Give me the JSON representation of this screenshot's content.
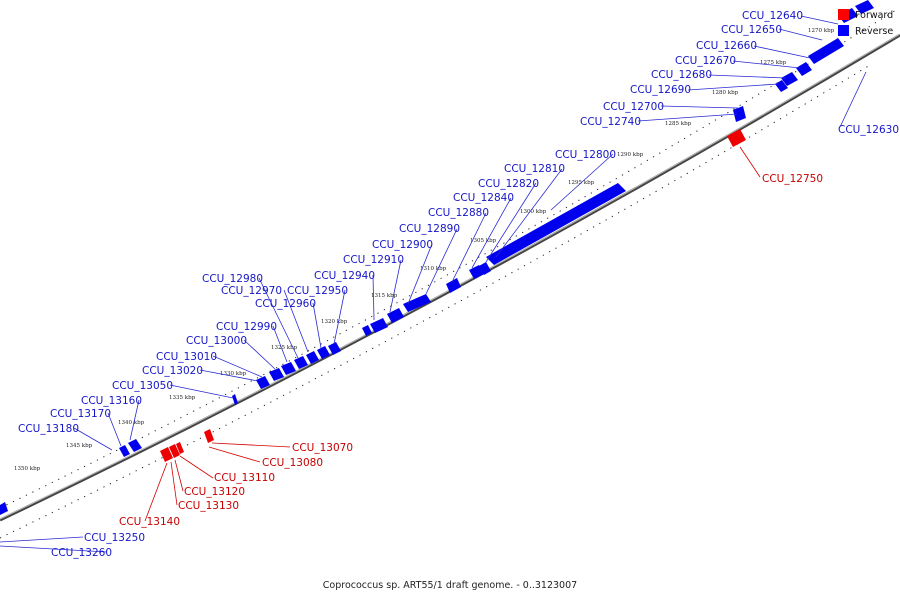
{
  "caption": "Coprococcus sp. ART55/1 draft genome. - 0..3123007",
  "legend": [
    {
      "label": "Forward",
      "color": "#ff0000"
    },
    {
      "label": "Reverse",
      "color": "#0000ff"
    }
  ],
  "colors": {
    "forward": "#ff0000",
    "reverse": "#0000ff",
    "forward_line": "#d40000",
    "reverse_line": "#2a2ad4",
    "backbone": "#555555"
  },
  "ticks": [
    "1270 kbp",
    "1275 kbp",
    "1280 kbp",
    "1285 kbp",
    "1290 kbp",
    "1295 kbp",
    "1300 kbp",
    "1305 kbp",
    "1310 kbp",
    "1315 kbp",
    "1320 kbp",
    "1325 kbp",
    "1330 kbp",
    "1335 kbp",
    "1340 kbp",
    "1345 kbp",
    "1350 kbp"
  ],
  "reverse_genes": [
    "CCU_12640",
    "CCU_12650",
    "CCU_12660",
    "CCU_12670",
    "CCU_12680",
    "CCU_12690",
    "CCU_12700",
    "CCU_12740",
    "CCU_12630",
    "CCU_12800",
    "CCU_12810",
    "CCU_12820",
    "CCU_12840",
    "CCU_12880",
    "CCU_12890",
    "CCU_12900",
    "CCU_12910",
    "CCU_12940",
    "CCU_12950",
    "CCU_12960",
    "CCU_12970",
    "CCU_12980",
    "CCU_12990",
    "CCU_13000",
    "CCU_13010",
    "CCU_13020",
    "CCU_13050",
    "CCU_13160",
    "CCU_13170",
    "CCU_13180",
    "CCU_13250",
    "CCU_13260"
  ],
  "forward_genes": [
    "CCU_12750",
    "CCU_13070",
    "CCU_13080",
    "CCU_13110",
    "CCU_13120",
    "CCU_13130",
    "CCU_13140"
  ]
}
